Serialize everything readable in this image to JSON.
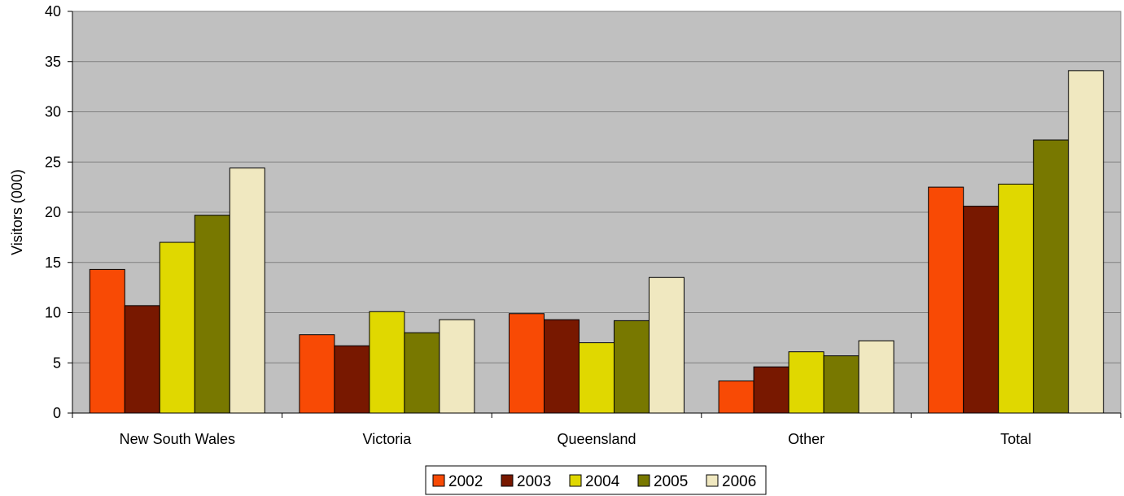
{
  "chart_data": {
    "type": "bar",
    "title": "",
    "xlabel": "",
    "ylabel": "Visitors (000)",
    "ylim": [
      0,
      40
    ],
    "yticks": [
      0,
      5,
      10,
      15,
      20,
      25,
      30,
      35,
      40
    ],
    "grid": true,
    "legend_position": "bottom",
    "plot_background": "#C0C0C0",
    "categories": [
      "New South Wales",
      "Victoria",
      "Queensland",
      "Other",
      "Total"
    ],
    "series": [
      {
        "name": "2002",
        "color": "#F84A05",
        "values": [
          14.3,
          7.8,
          9.9,
          3.2,
          22.5
        ]
      },
      {
        "name": "2003",
        "color": "#781800",
        "values": [
          10.7,
          6.7,
          9.3,
          4.6,
          20.6
        ]
      },
      {
        "name": "2004",
        "color": "#E0D800",
        "values": [
          17.0,
          10.1,
          7.0,
          6.1,
          22.8
        ]
      },
      {
        "name": "2005",
        "color": "#787800",
        "values": [
          19.7,
          8.0,
          9.2,
          5.7,
          27.2
        ]
      },
      {
        "name": "2006",
        "color": "#F0E8C0",
        "values": [
          24.4,
          9.3,
          13.5,
          7.2,
          34.1
        ]
      }
    ]
  }
}
